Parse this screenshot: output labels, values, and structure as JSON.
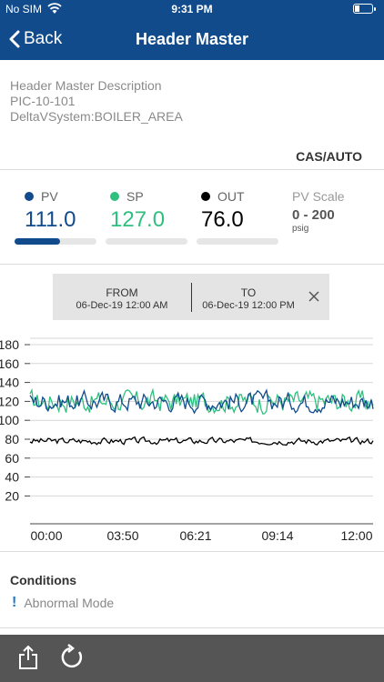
{
  "status": {
    "carrier": "No SIM",
    "time": "9:31 PM"
  },
  "nav": {
    "back_label": "Back",
    "title": "Header Master"
  },
  "description": {
    "line1": "Header Master Description",
    "line2": "PIC-10-101",
    "line3": "DeltaVSystem:BOILER_AREA"
  },
  "mode": "CAS/AUTO",
  "metrics": {
    "pv": {
      "label": "PV",
      "value": "111.0",
      "color": "#114b8c",
      "bar_fill": 0.555
    },
    "sp": {
      "label": "SP",
      "value": "127.0",
      "color": "#2fbf7f",
      "bar_fill": 0.0
    },
    "out": {
      "label": "OUT",
      "value": "76.0",
      "color": "#000000",
      "bar_fill": 0.0
    }
  },
  "scale": {
    "label": "PV Scale",
    "range": "0 - 200",
    "unit": "psig"
  },
  "date_range": {
    "from_label": "FROM",
    "from_value": "06-Dec-19 12:00 AM",
    "to_label": "TO",
    "to_value": "06-Dec-19 12:00 PM"
  },
  "chart_data": {
    "type": "line",
    "y_ticks": [
      "180",
      "160",
      "140",
      "120",
      "100",
      "80",
      "60",
      "40",
      "20"
    ],
    "x_ticks": [
      "00:00",
      "03:50",
      "06:21",
      "09:14",
      "12:00"
    ],
    "ylim": [
      0,
      190
    ],
    "series": [
      {
        "name": "SP",
        "color": "#2fbf7f",
        "band": [
          103,
          137
        ]
      },
      {
        "name": "PV",
        "color": "#114b8c",
        "band": [
          105,
          135
        ]
      },
      {
        "name": "OUT",
        "color": "#000000",
        "band": [
          73,
          83
        ]
      }
    ]
  },
  "conditions": {
    "title": "Conditions",
    "items": [
      "Abnormal Mode"
    ]
  },
  "icons": {
    "share": "share-icon",
    "refresh": "refresh-icon",
    "close": "close-icon"
  }
}
